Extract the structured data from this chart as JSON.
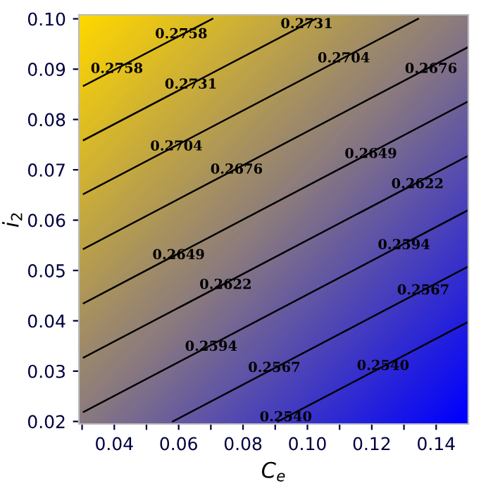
{
  "chart_data": {
    "type": "line",
    "xlabel": "C$_{e}$",
    "ylabel": "i$_{2}$",
    "xlim": [
      0.029,
      0.15
    ],
    "ylim": [
      0.0195,
      0.1008
    ],
    "xticks": [
      {
        "value": 0.03,
        "label": null
      },
      0.04,
      {
        "value": 0.05,
        "label": null
      },
      0.06,
      {
        "value": 0.07,
        "label": null
      },
      0.08,
      {
        "value": 0.09,
        "label": null
      },
      {
        "value": 0.1,
        "label": "0.10"
      },
      {
        "value": 0.11,
        "label": null
      },
      0.12,
      {
        "value": 0.13,
        "label": null
      },
      0.14
    ],
    "yticks": [
      0.02,
      0.03,
      0.04,
      0.05,
      0.06,
      0.07,
      0.08,
      0.09,
      {
        "value": 0.1,
        "label": "0.10"
      }
    ],
    "line_style": "solid",
    "marker": "none",
    "series": [
      {
        "color": "#000000",
        "x": [
          0.0305,
          0.0705
        ],
        "values": [
          0.0867,
          0.1
        ]
      },
      {
        "color": "#000000",
        "x": [
          0.0305,
          0.1026
        ],
        "values": [
          0.0759,
          0.1
        ]
      },
      {
        "color": "#000000",
        "x": [
          0.0305,
          0.1344
        ],
        "values": [
          0.0652,
          0.1
        ]
      },
      {
        "color": "#000000",
        "x": [
          0.0305,
          0.15
        ],
        "values": [
          0.0543,
          0.0944
        ]
      },
      {
        "color": "#000000",
        "x": [
          0.0305,
          0.15
        ],
        "values": [
          0.0435,
          0.0836
        ]
      },
      {
        "color": "#000000",
        "x": [
          0.0305,
          0.15
        ],
        "values": [
          0.0327,
          0.0728
        ]
      },
      {
        "color": "#000000",
        "x": [
          0.0305,
          0.15
        ],
        "values": [
          0.0219,
          0.062
        ]
      },
      {
        "color": "#000000",
        "x": [
          0.0582,
          0.15
        ],
        "values": [
          0.02,
          0.0508
        ]
      },
      {
        "color": "#000000",
        "x": [
          0.0909,
          0.15
        ],
        "values": [
          0.02,
          0.0398
        ]
      }
    ],
    "annotations": [
      {
        "text": "0.2758",
        "x": 0.0608,
        "y": 0.0969
      },
      {
        "text": "0.2758",
        "x": 0.0408,
        "y": 0.09
      },
      {
        "text": "0.2731",
        "x": 0.0998,
        "y": 0.0989
      },
      {
        "text": "0.2731",
        "x": 0.0638,
        "y": 0.0869
      },
      {
        "text": "0.2704",
        "x": 0.1113,
        "y": 0.0921
      },
      {
        "text": "0.2704",
        "x": 0.0593,
        "y": 0.0746
      },
      {
        "text": "0.2676",
        "x": 0.1384,
        "y": 0.09
      },
      {
        "text": "0.2676",
        "x": 0.078,
        "y": 0.07
      },
      {
        "text": "0.2649",
        "x": 0.1197,
        "y": 0.0731
      },
      {
        "text": "0.2622",
        "x": 0.1342,
        "y": 0.0671
      },
      {
        "text": "0.2649",
        "x": 0.06,
        "y": 0.053
      },
      {
        "text": "0.2622",
        "x": 0.0746,
        "y": 0.0471
      },
      {
        "text": "0.2594",
        "x": 0.13,
        "y": 0.055
      },
      {
        "text": "0.2567",
        "x": 0.136,
        "y": 0.046
      },
      {
        "text": "0.2594",
        "x": 0.0701,
        "y": 0.0348
      },
      {
        "text": "0.2567",
        "x": 0.0897,
        "y": 0.0306
      },
      {
        "text": "0.2540",
        "x": 0.1235,
        "y": 0.031
      },
      {
        "text": "0.2540",
        "x": 0.0933,
        "y": 0.0208
      }
    ],
    "grid": false
  }
}
